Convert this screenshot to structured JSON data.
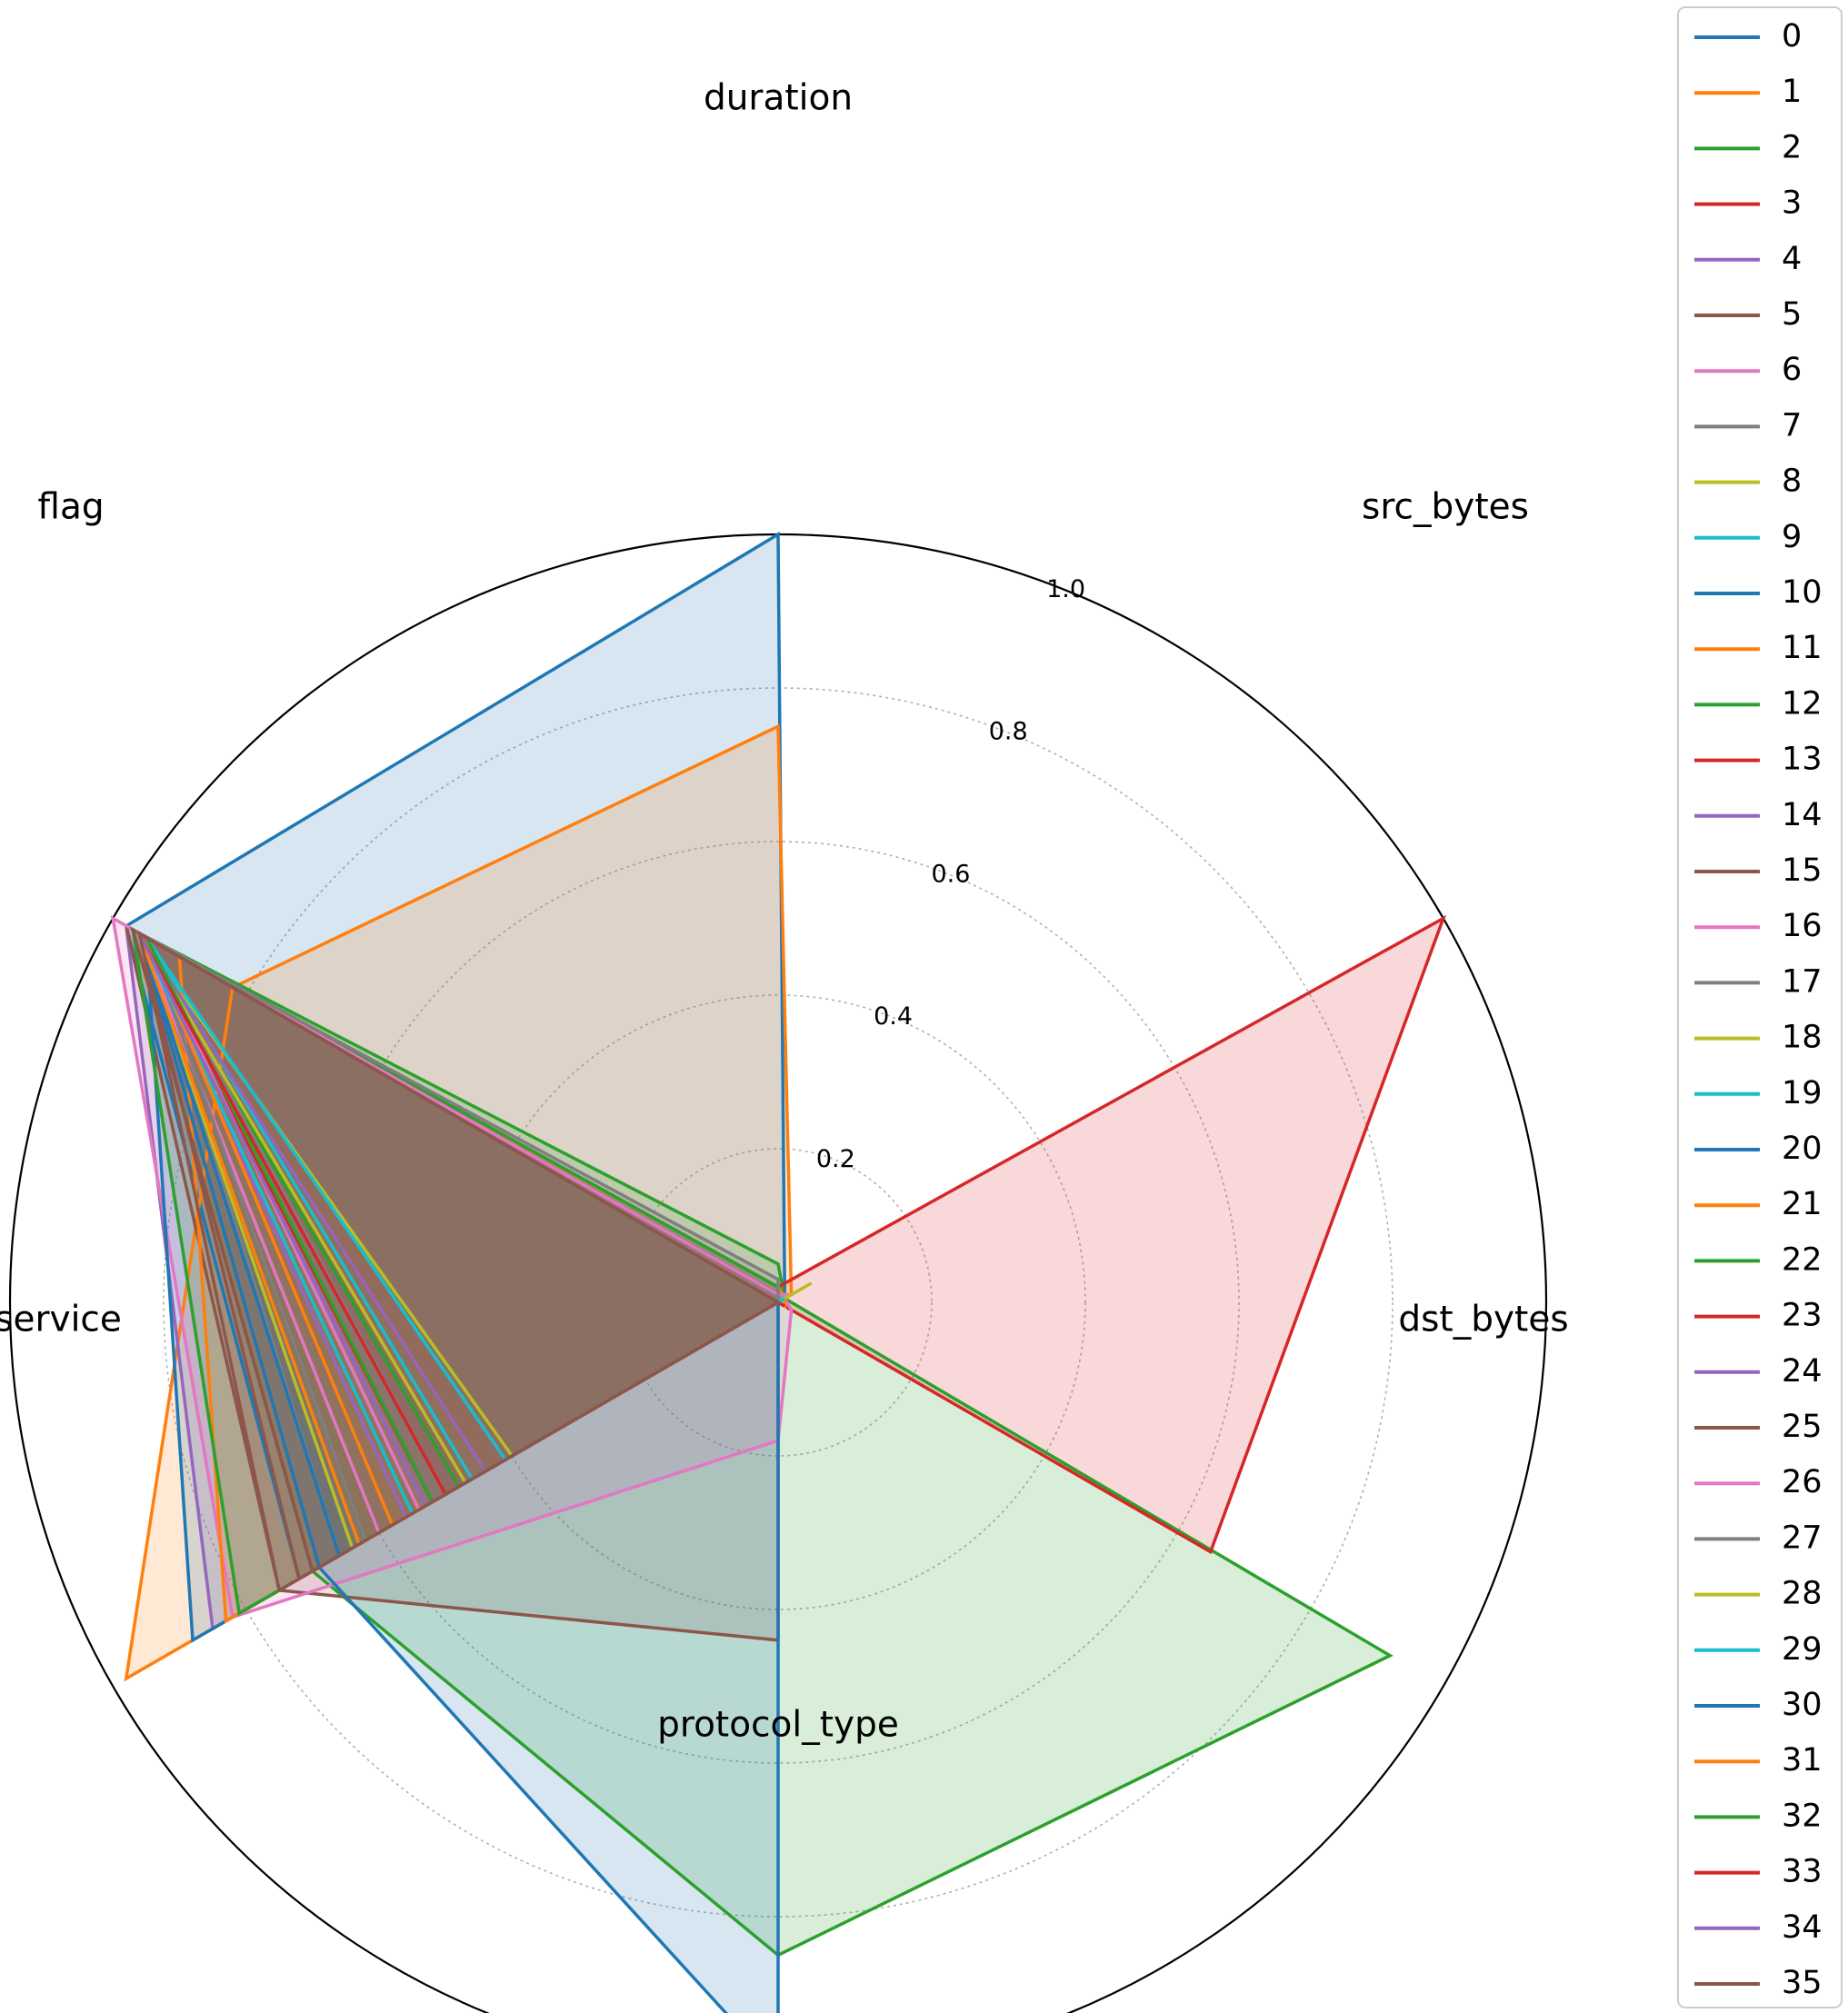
{
  "chart_data": {
    "type": "radar",
    "axes": [
      "duration",
      "src_bytes",
      "dst_bytes",
      "protocol_type",
      "service",
      "flag"
    ],
    "rlim": [
      0,
      1.0
    ],
    "rticks": [
      0.2,
      0.4,
      0.6,
      0.8,
      1.0
    ],
    "rtick_labels": [
      "0.2",
      "0.4",
      "0.6",
      "0.8",
      "1.0"
    ],
    "grid": true,
    "legend_position": "outside-right",
    "palette": [
      "#1f77b4",
      "#ff7f0e",
      "#2ca02c",
      "#d62728",
      "#9467bd",
      "#8c564b",
      "#e377c2",
      "#7f7f7f",
      "#bcbd22",
      "#17becf"
    ],
    "series": [
      {
        "name": "0",
        "values": [
          1.0,
          0.01,
          0.0,
          0.0,
          0.72,
          0.98
        ]
      },
      {
        "name": "1",
        "values": [
          0.75,
          0.02,
          0.0,
          0.0,
          0.98,
          0.82
        ]
      },
      {
        "name": "2",
        "values": [
          0.05,
          0.01,
          0.92,
          0.85,
          0.7,
          0.97
        ]
      },
      {
        "name": "3",
        "values": [
          0.02,
          1.0,
          0.65,
          0.0,
          0.52,
          0.96
        ]
      },
      {
        "name": "4",
        "values": [
          0.02,
          0.01,
          0.0,
          0.0,
          0.85,
          0.98
        ]
      },
      {
        "name": "5",
        "values": [
          0.01,
          0.0,
          0.0,
          0.44,
          0.75,
          0.98
        ]
      },
      {
        "name": "6",
        "values": [
          0.02,
          0.01,
          0.02,
          0.18,
          0.82,
          1.0
        ]
      },
      {
        "name": "7",
        "values": [
          0.01,
          0.0,
          0.01,
          0.0,
          0.66,
          0.95
        ]
      },
      {
        "name": "8",
        "values": [
          0.01,
          0.01,
          0.0,
          0.0,
          0.4,
          0.96
        ]
      },
      {
        "name": "9",
        "values": [
          0.01,
          0.01,
          0.0,
          0.0,
          0.46,
          0.95
        ]
      },
      {
        "name": "10",
        "values": [
          0.02,
          0.0,
          0.0,
          0.0,
          0.88,
          0.95
        ]
      },
      {
        "name": "11",
        "values": [
          0.02,
          0.01,
          0.01,
          0.0,
          0.83,
          0.9
        ]
      },
      {
        "name": "12",
        "values": [
          0.02,
          0.0,
          0.01,
          0.0,
          0.81,
          0.97
        ]
      },
      {
        "name": "13",
        "values": [
          0.01,
          0.0,
          0.01,
          0.0,
          0.62,
          0.95
        ]
      },
      {
        "name": "14",
        "values": [
          0.01,
          0.0,
          0.0,
          0.0,
          0.56,
          0.96
        ]
      },
      {
        "name": "15",
        "values": [
          0.01,
          0.0,
          0.0,
          0.0,
          0.7,
          0.97
        ]
      },
      {
        "name": "16",
        "values": [
          0.01,
          0.02,
          0.0,
          0.0,
          0.6,
          0.96
        ]
      },
      {
        "name": "17",
        "values": [
          0.03,
          0.0,
          0.0,
          0.0,
          0.62,
          0.95
        ]
      },
      {
        "name": "18",
        "values": [
          0.0,
          0.05,
          0.0,
          0.0,
          0.64,
          0.96
        ]
      },
      {
        "name": "19",
        "values": [
          0.0,
          0.01,
          0.0,
          0.0,
          0.55,
          0.96
        ]
      },
      {
        "name": "20",
        "values": [
          0.0,
          0.0,
          0.0,
          0.0,
          0.66,
          0.96
        ]
      },
      {
        "name": "21",
        "values": [
          0.0,
          0.01,
          0.0,
          0.0,
          0.58,
          0.95
        ]
      },
      {
        "name": "22",
        "values": [
          0.0,
          0.0,
          0.0,
          0.0,
          0.48,
          0.96
        ]
      },
      {
        "name": "23",
        "values": [
          0.0,
          0.0,
          0.0,
          0.0,
          0.44,
          0.96
        ]
      },
      {
        "name": "24",
        "values": [
          0.0,
          0.0,
          0.0,
          0.0,
          0.44,
          0.96
        ]
      },
      {
        "name": "25",
        "values": [
          0.0,
          0.0,
          0.0,
          0.0,
          0.72,
          0.96
        ]
      },
      {
        "name": "26",
        "values": [
          0.0,
          0.01,
          0.0,
          0.0,
          0.54,
          0.95
        ]
      },
      {
        "name": "27",
        "values": [
          0.0,
          0.0,
          0.0,
          0.0,
          0.5,
          0.95
        ]
      },
      {
        "name": "28",
        "values": [
          0.0,
          0.04,
          0.0,
          0.0,
          0.47,
          0.96
        ]
      },
      {
        "name": "29",
        "values": [
          0.0,
          0.01,
          0.0,
          0.0,
          0.41,
          0.95
        ]
      },
      {
        "name": "30",
        "values": [
          0.0,
          0.0,
          0.0,
          1.0,
          0.69,
          0.96
        ]
      },
      {
        "name": "31",
        "values": [
          0.0,
          0.0,
          0.0,
          0.0,
          0.63,
          0.96
        ]
      },
      {
        "name": "32",
        "values": [
          0.0,
          0.0,
          0.0,
          0.0,
          0.52,
          0.95
        ]
      },
      {
        "name": "33",
        "values": [
          0.0,
          0.0,
          0.0,
          0.0,
          0.5,
          0.96
        ]
      },
      {
        "name": "34",
        "values": [
          0.0,
          0.0,
          0.0,
          0.0,
          0.53,
          0.96
        ]
      },
      {
        "name": "35",
        "values": [
          0.0,
          0.0,
          0.0,
          0.0,
          0.75,
          0.96
        ]
      }
    ]
  }
}
